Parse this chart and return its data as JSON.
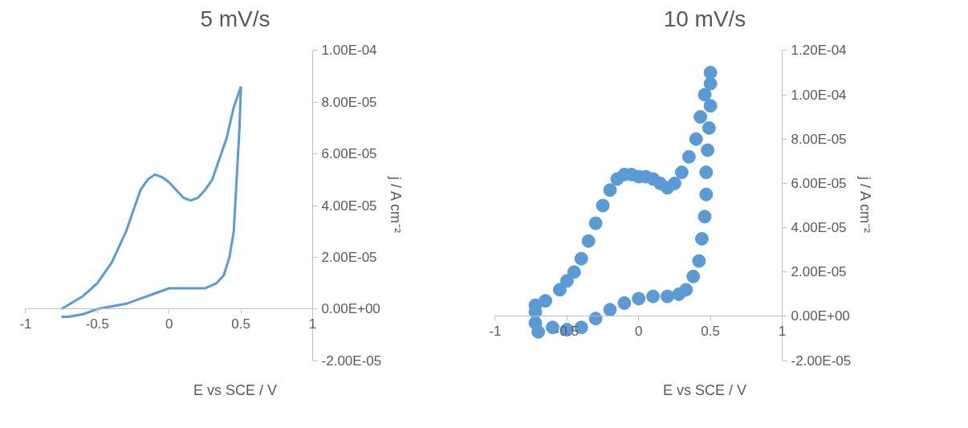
{
  "chart_data": [
    {
      "type": "line",
      "title": "5 mV/s",
      "xlabel": "E vs SCE / V",
      "ylabel": "j / A cm⁻²",
      "xlim": [
        -1,
        1
      ],
      "xticks": [
        -1,
        -0.5,
        0,
        0.5,
        1
      ],
      "ylim": [
        -2e-05,
        0.0001
      ],
      "yticks": [
        {
          "value": -2e-05,
          "label": "-2.00E-05"
        },
        {
          "value": 0,
          "label": "0.00E+00"
        },
        {
          "value": 2e-05,
          "label": "2.00E-05"
        },
        {
          "value": 4e-05,
          "label": "4.00E-05"
        },
        {
          "value": 6e-05,
          "label": "6.00E-05"
        },
        {
          "value": 8e-05,
          "label": "8.00E-05"
        },
        {
          "value": 0.0001,
          "label": "1.00E-04"
        }
      ],
      "grid": false,
      "marker": "none",
      "line_style": "solid",
      "series": [
        {
          "color": "#5b9bd5",
          "x": [
            -0.75,
            -0.6,
            -0.5,
            -0.4,
            -0.3,
            -0.25,
            -0.2,
            -0.15,
            -0.1,
            -0.05,
            0,
            0.05,
            0.1,
            0.15,
            0.2,
            0.25,
            0.3,
            0.35,
            0.4,
            0.45,
            0.5
          ],
          "values": [
            0,
            5e-06,
            1e-05,
            1.8e-05,
            3e-05,
            3.8e-05,
            4.6e-05,
            5e-05,
            5.2e-05,
            5.1e-05,
            4.9e-05,
            4.6e-05,
            4.3e-05,
            4.2e-05,
            4.3e-05,
            4.6e-05,
            5e-05,
            5.8e-05,
            6.6e-05,
            7.8e-05,
            8.6e-05
          ]
        },
        {
          "color": "#5b9bd5",
          "x": [
            0.5,
            0.49,
            0.47,
            0.45,
            0.42,
            0.38,
            0.33,
            0.25,
            0.2,
            0.1,
            0,
            -0.1,
            -0.2,
            -0.3,
            -0.4,
            -0.5,
            -0.6,
            -0.7,
            -0.75
          ],
          "values": [
            8.6e-05,
            7e-05,
            5e-05,
            3e-05,
            2e-05,
            1.3e-05,
            1e-05,
            8e-06,
            8e-06,
            8e-06,
            8e-06,
            6e-06,
            4e-06,
            2e-06,
            1e-06,
            0,
            -2e-06,
            -3e-06,
            -3e-06
          ]
        }
      ]
    },
    {
      "type": "scatter",
      "title": "10 mV/s",
      "xlabel": "E vs SCE / V",
      "ylabel": "j / A cm⁻²",
      "xlim": [
        -1,
        1
      ],
      "xticks": [
        -1,
        -0.5,
        0,
        0.5,
        1
      ],
      "ylim": [
        -2e-05,
        0.00012
      ],
      "yticks": [
        {
          "value": -2e-05,
          "label": "-2.00E-05"
        },
        {
          "value": 0,
          "label": "0.00E+00"
        },
        {
          "value": 2e-05,
          "label": "2.00E-05"
        },
        {
          "value": 4e-05,
          "label": "4.00E-05"
        },
        {
          "value": 6e-05,
          "label": "6.00E-05"
        },
        {
          "value": 8e-05,
          "label": "8.00E-05"
        },
        {
          "value": 0.0001,
          "label": "1.00E-04"
        },
        {
          "value": 0.00012,
          "label": "1.20E-04"
        }
      ],
      "grid": false,
      "marker": "circle",
      "series": [
        {
          "color": "#5b9bd5",
          "x": [
            -0.72,
            -0.65,
            -0.55,
            -0.5,
            -0.45,
            -0.4,
            -0.35,
            -0.3,
            -0.25,
            -0.2,
            -0.15,
            -0.1,
            -0.05,
            0,
            0.05,
            0.1,
            0.15,
            0.2,
            0.25,
            0.3,
            0.35,
            0.4,
            0.43,
            0.46,
            0.5,
            0.5,
            0.5,
            0.49,
            0.48,
            0.47,
            0.47,
            0.46,
            0.44,
            0.42,
            0.38,
            0.33,
            0.28,
            0.2,
            0.1,
            0,
            -0.1,
            -0.2,
            -0.3,
            -0.4,
            -0.5,
            -0.6,
            -0.7,
            -0.72,
            -0.72
          ],
          "values": [
            5e-06,
            7e-06,
            1.2e-05,
            1.6e-05,
            2e-05,
            2.6e-05,
            3.4e-05,
            4.2e-05,
            5e-05,
            5.7e-05,
            6.2e-05,
            6.4e-05,
            6.4e-05,
            6.3e-05,
            6.3e-05,
            6.2e-05,
            6e-05,
            5.8e-05,
            6e-05,
            6.5e-05,
            7.2e-05,
            8e-05,
            9e-05,
            0.0001,
            0.00011,
            0.000105,
            9.5e-05,
            8.5e-05,
            7.5e-05,
            6.5e-05,
            5.5e-05,
            4.5e-05,
            3.5e-05,
            2.5e-05,
            1.8e-05,
            1.2e-05,
            1e-05,
            9e-06,
            9e-06,
            8e-06,
            6e-06,
            3e-06,
            -1e-06,
            -5e-06,
            -6e-06,
            -5e-06,
            -7e-06,
            -3e-06,
            2e-06
          ]
        }
      ]
    }
  ]
}
